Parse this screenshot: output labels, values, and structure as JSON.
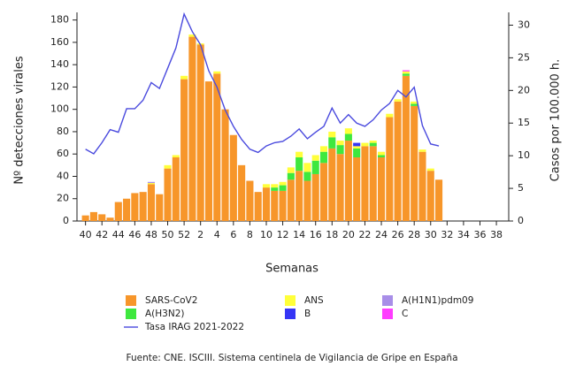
{
  "chart_data": {
    "type": "bar",
    "stacked": true,
    "y_label": "Nº detecciones virales",
    "y2_label": "Casos por 100.000 h.",
    "x_label": "Semanas",
    "source": "Fuente: CNE. ISCIII. Sistema centinela de Vigilancia de Gripe en España",
    "categories": [
      40,
      null,
      42,
      null,
      44,
      null,
      46,
      null,
      48,
      null,
      50,
      null,
      52,
      null,
      2,
      null,
      4,
      null,
      6,
      null,
      8,
      null,
      10,
      null,
      12,
      null,
      14,
      null,
      16,
      null,
      18,
      null,
      20,
      null,
      22,
      null,
      24,
      null,
      26,
      null,
      28,
      null,
      30,
      null,
      32,
      null,
      34,
      null,
      36,
      null,
      38,
      null
    ],
    "ylim": [
      0,
      190
    ],
    "yticks": [
      0,
      20,
      40,
      60,
      80,
      100,
      120,
      140,
      160,
      180
    ],
    "y2lim": [
      0,
      32.5
    ],
    "y2ticks": [
      0,
      5,
      10,
      15,
      20,
      25,
      30
    ],
    "series": [
      {
        "name": "SARS-CoV2",
        "color": "#f7962a",
        "values": [
          5,
          8,
          6,
          3,
          17,
          20,
          25,
          26,
          33,
          24,
          47,
          57,
          127,
          165,
          158,
          125,
          132,
          100,
          77,
          50,
          36,
          26,
          30,
          27,
          27,
          37,
          45,
          36,
          42,
          52,
          65,
          60,
          72,
          57,
          67,
          67,
          57,
          93,
          107,
          130,
          103,
          62,
          45,
          37,
          null,
          null,
          null,
          null,
          null,
          null,
          null,
          null
        ]
      },
      {
        "name": "A(H3N2)",
        "color": "#3ee83e",
        "values": [
          0,
          0,
          0,
          0,
          0,
          0,
          0,
          0,
          0,
          0,
          0,
          0,
          0,
          0,
          0,
          0,
          0,
          0,
          0,
          0,
          0,
          0,
          0,
          3,
          5,
          6,
          12,
          8,
          12,
          10,
          10,
          8,
          6,
          8,
          0,
          3,
          2,
          0,
          0,
          2,
          2,
          0,
          0,
          0,
          null,
          null,
          null,
          null,
          null,
          null,
          null,
          null
        ]
      },
      {
        "name": "ANS",
        "color": "#ffff3a",
        "values": [
          0,
          0,
          0,
          0,
          0,
          0,
          0,
          0,
          1,
          0,
          3,
          2,
          3,
          2,
          1,
          0,
          2,
          0,
          0,
          0,
          0,
          0,
          3,
          3,
          3,
          5,
          5,
          8,
          5,
          5,
          5,
          4,
          5,
          2,
          3,
          2,
          3,
          3,
          2,
          2,
          2,
          2,
          2,
          0,
          null,
          null,
          null,
          null,
          null,
          null,
          null,
          null
        ]
      },
      {
        "name": "B",
        "color": "#3535f5",
        "values": [
          0,
          0,
          0,
          0,
          0,
          0,
          0,
          0,
          0,
          0,
          0,
          0,
          0,
          0,
          0,
          0,
          0,
          0,
          0,
          0,
          0,
          0,
          0,
          0,
          0,
          0,
          0,
          0,
          0,
          0,
          0,
          0,
          0,
          3,
          0,
          0,
          0,
          0,
          0,
          0,
          0,
          0,
          0,
          0,
          null,
          null,
          null,
          null,
          null,
          null,
          null,
          null
        ]
      },
      {
        "name": "A(H1N1)pdm09",
        "color": "#a88ee8",
        "values": [
          0,
          0,
          0,
          0,
          0,
          0,
          0,
          0,
          1,
          0,
          0,
          0,
          0,
          0,
          0,
          0,
          0,
          0,
          0,
          0,
          0,
          0,
          0,
          0,
          0,
          0,
          0,
          0,
          0,
          0,
          0,
          0,
          0,
          0,
          0,
          0,
          0,
          0,
          0,
          0,
          0,
          0,
          0,
          0,
          null,
          null,
          null,
          null,
          null,
          null,
          null,
          null
        ]
      },
      {
        "name": "C",
        "color": "#ff3cff",
        "values": [
          0,
          0,
          0,
          0,
          0,
          0,
          0,
          0,
          0,
          0,
          0,
          0,
          0,
          0,
          0,
          0,
          0,
          0,
          0,
          0,
          0,
          0,
          0,
          0,
          0,
          0,
          0,
          0,
          0,
          0,
          0,
          0,
          0,
          0,
          0,
          0,
          0,
          0,
          0,
          1,
          0,
          0,
          0,
          0,
          null,
          null,
          null,
          null,
          null,
          null,
          null,
          null
        ]
      },
      {
        "name": "Tasa IRAG 2021-2022",
        "color": "#4a4ade",
        "type": "line",
        "axis": "y2",
        "values": [
          11,
          10.3,
          12,
          14,
          13.6,
          17.2,
          17.2,
          18.5,
          21.2,
          20.3,
          23.4,
          26.5,
          31.7,
          29,
          27,
          23,
          20.5,
          17,
          14.5,
          12.5,
          11,
          10.5,
          11.5,
          12,
          12.2,
          13,
          14.1,
          12.6,
          13.6,
          14.5,
          17.3,
          15,
          16.3,
          15,
          14.5,
          15.5,
          17,
          18,
          20,
          19,
          20.5,
          14.6,
          11.8,
          11.5,
          null,
          null,
          null,
          null,
          null,
          null,
          null,
          null
        ]
      }
    ]
  }
}
